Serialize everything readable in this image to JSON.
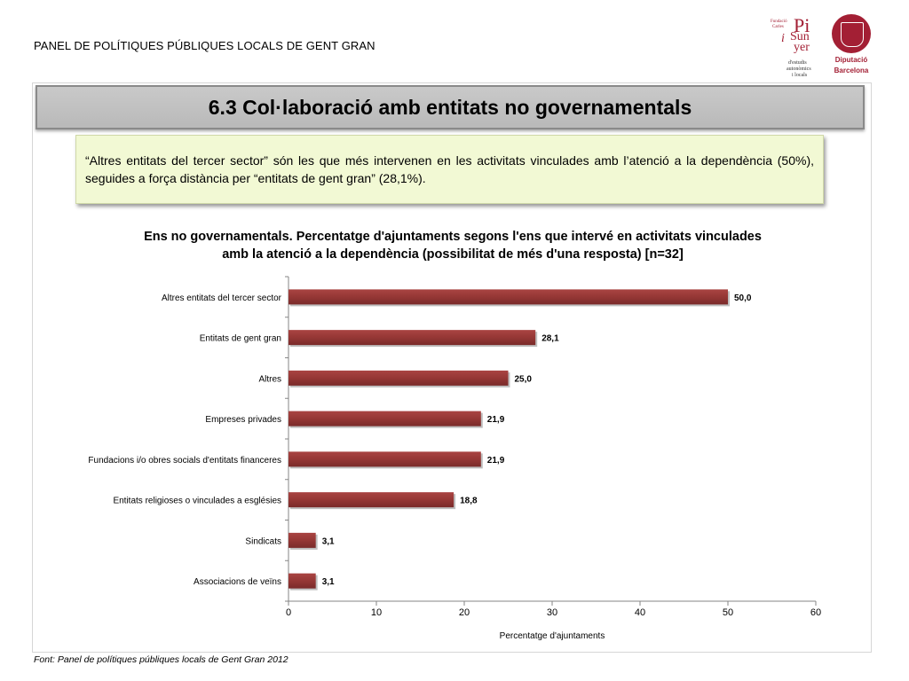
{
  "header": {
    "title": "PANEL DE POLÍTIQUES PÚBLIQUES LOCALS DE GENT GRAN",
    "logo_pi": {
      "line1": "Fundació",
      "line2": "Carles",
      "pi": "Pi",
      "i": "i",
      "sunyer1": "Sun",
      "sunyer2": "yer",
      "sub1": "d'estudis",
      "sub2": "autonòmics",
      "sub3": "i locals"
    },
    "logo_dip": {
      "line1": "Diputació",
      "line2": "Barcelona"
    }
  },
  "section": {
    "title": "6.3 Col·laboració amb entitats no governamentals"
  },
  "callout": {
    "text": "“Altres entitats del tercer sector” són les que més intervenen en les activitats vinculades amb l’atenció a la dependència (50%), seguides a força distància per “entitats de gent gran” (28,1%)."
  },
  "chart_data": {
    "type": "bar",
    "orientation": "horizontal",
    "title_line1": "Ens no governamentals. Percentatge d'ajuntaments segons l'ens que intervé en activitats vinculades",
    "title_line2": "amb la atenció a la dependència (possibilitat de més d'una resposta) [n=32]",
    "xlabel": "Percentatge d'ajuntaments",
    "ylabel": "",
    "xlim": [
      0,
      60
    ],
    "xticks": [
      0,
      10,
      20,
      30,
      40,
      50,
      60
    ],
    "grid": false,
    "bar_color": "#953735",
    "categories": [
      "Altres entitats del tercer sector",
      "Entitats de gent gran",
      "Altres",
      "Empreses privades",
      "Fundacions i/o obres socials d'entitats financeres",
      "Entitats religioses o vinculades a esglésies",
      "Sindicats",
      "Associacions de veïns"
    ],
    "values": [
      50.0,
      28.1,
      25.0,
      21.9,
      21.9,
      18.8,
      3.1,
      3.1
    ],
    "value_labels": [
      "50,0",
      "28,1",
      "25,0",
      "21,9",
      "21,9",
      "18,8",
      "3,1",
      "3,1"
    ]
  },
  "footer": {
    "source": "Font: Panel de  polítiques públiques locals de Gent Gran 2012"
  },
  "colors": {
    "accent": "#a31f34",
    "callout_bg": "#f2f9d4",
    "title_bar_bg": "#c0c0c0"
  }
}
